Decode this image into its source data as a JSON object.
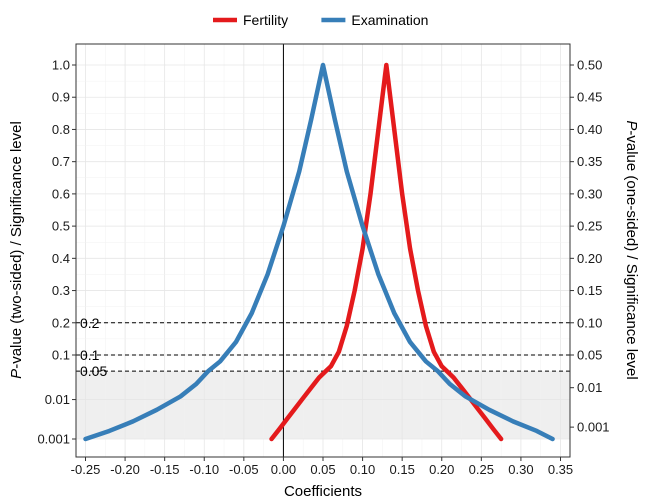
{
  "chart_data": {
    "type": "line",
    "xlabel": "Coefficients",
    "ylabel_left": {
      "italic": "P",
      "rest": "-value (two-sided) / Significance level"
    },
    "ylabel_right": {
      "italic": "P",
      "rest": "-value (one-sided) / Significance level"
    },
    "xlim": [
      -0.262,
      0.362
    ],
    "x_ticks": [
      -0.25,
      -0.2,
      -0.15,
      -0.1,
      -0.05,
      0.0,
      0.05,
      0.1,
      0.15,
      0.2,
      0.25,
      0.3,
      0.35
    ],
    "x_tick_labels": [
      "-0.25",
      "-0.20",
      "-0.15",
      "-0.10",
      "-0.05",
      "0.00",
      "0.05",
      "0.10",
      "0.15",
      "0.20",
      "0.25",
      "0.30",
      "0.35"
    ],
    "y_axis_note": "piecewise scale: logarithmic from 0.001 to 0.05, linear from 0.05 to 1.0",
    "y_ticks_left": [
      0.001,
      0.01,
      0.1,
      0.2,
      0.3,
      0.4,
      0.5,
      0.6,
      0.7,
      0.8,
      0.9,
      1.0
    ],
    "y_tick_labels_left": [
      "0.001",
      "0.01",
      "0.1",
      "0.2",
      "0.3",
      "0.4",
      "0.5",
      "0.6",
      "0.7",
      "0.8",
      "0.9",
      "1.0"
    ],
    "y_ticks_right": [
      0.002,
      0.02,
      0.1,
      0.2,
      0.3,
      0.4,
      0.5,
      0.6,
      0.7,
      0.8,
      0.9,
      1.0
    ],
    "y_tick_labels_right": [
      "0.001",
      "0.01",
      "0.05",
      "0.10",
      "0.15",
      "0.20",
      "0.25",
      "0.30",
      "0.35",
      "0.40",
      "0.45",
      "0.50"
    ],
    "reference_lines": [
      {
        "y": 0.2,
        "label": "0.2"
      },
      {
        "y": 0.1,
        "label": "0.1"
      },
      {
        "y": 0.05,
        "label": "0.05"
      }
    ],
    "shaded_region": {
      "y_from": 0.001,
      "y_to": 0.05
    },
    "vertical_line_x": 0.0,
    "grid": true,
    "legend_position": "top",
    "series": [
      {
        "name": "Fertility",
        "color": "#e41a1c",
        "points": [
          [
            -0.015,
            0.001
          ],
          [
            -0.005,
            0.0018
          ],
          [
            0.005,
            0.0033
          ],
          [
            0.015,
            0.006
          ],
          [
            0.025,
            0.011
          ],
          [
            0.035,
            0.02
          ],
          [
            0.045,
            0.036
          ],
          [
            0.0535,
            0.05
          ],
          [
            0.06,
            0.065
          ],
          [
            0.07,
            0.11
          ],
          [
            0.08,
            0.19
          ],
          [
            0.09,
            0.3
          ],
          [
            0.1,
            0.43
          ],
          [
            0.11,
            0.6
          ],
          [
            0.12,
            0.8
          ],
          [
            0.13,
            1.0
          ],
          [
            0.14,
            0.8
          ],
          [
            0.15,
            0.6
          ],
          [
            0.16,
            0.43
          ],
          [
            0.17,
            0.3
          ],
          [
            0.18,
            0.19
          ],
          [
            0.19,
            0.11
          ],
          [
            0.2,
            0.065
          ],
          [
            0.2065,
            0.05
          ],
          [
            0.215,
            0.036
          ],
          [
            0.225,
            0.02
          ],
          [
            0.235,
            0.011
          ],
          [
            0.245,
            0.006
          ],
          [
            0.255,
            0.0033
          ],
          [
            0.265,
            0.0018
          ],
          [
            0.275,
            0.001
          ]
        ]
      },
      {
        "name": "Examination",
        "color": "#377eb8",
        "points": [
          [
            -0.25,
            0.001
          ],
          [
            -0.22,
            0.0016
          ],
          [
            -0.19,
            0.0028
          ],
          [
            -0.16,
            0.0055
          ],
          [
            -0.13,
            0.012
          ],
          [
            -0.11,
            0.025
          ],
          [
            -0.095,
            0.05
          ],
          [
            -0.08,
            0.08
          ],
          [
            -0.06,
            0.14
          ],
          [
            -0.04,
            0.23
          ],
          [
            -0.02,
            0.35
          ],
          [
            0.0,
            0.5
          ],
          [
            0.02,
            0.67
          ],
          [
            0.035,
            0.83
          ],
          [
            0.05,
            1.0
          ],
          [
            0.065,
            0.83
          ],
          [
            0.08,
            0.67
          ],
          [
            0.1,
            0.5
          ],
          [
            0.12,
            0.35
          ],
          [
            0.14,
            0.23
          ],
          [
            0.16,
            0.14
          ],
          [
            0.18,
            0.08
          ],
          [
            0.195,
            0.05
          ],
          [
            0.21,
            0.025
          ],
          [
            0.23,
            0.012
          ],
          [
            0.26,
            0.0055
          ],
          [
            0.29,
            0.0028
          ],
          [
            0.32,
            0.0016
          ],
          [
            0.34,
            0.001
          ]
        ]
      }
    ]
  }
}
